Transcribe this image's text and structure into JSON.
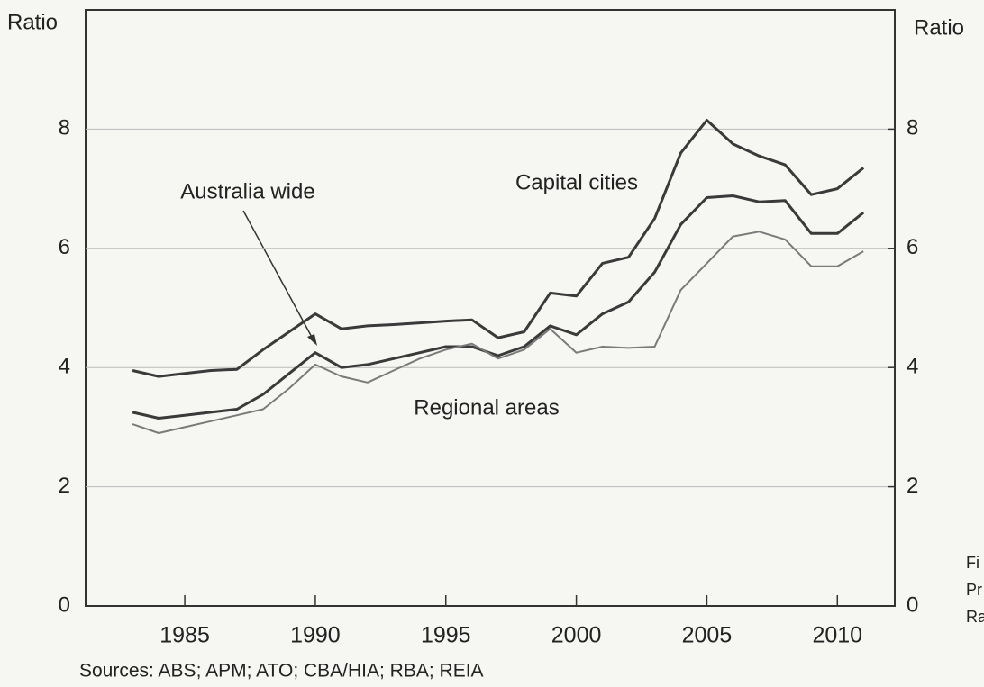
{
  "chart_data": {
    "type": "line",
    "y_label_left": "Ratio",
    "y_label_right": "Ratio",
    "source": "Sources: ABS; APM; ATO; CBA/HIA; RBA; REIA",
    "side_text": [
      "Fi",
      "Pr",
      "Ra"
    ],
    "x": [
      1983,
      1984,
      1985,
      1986,
      1987,
      1988,
      1989,
      1990,
      1991,
      1992,
      1993,
      1994,
      1995,
      1996,
      1997,
      1998,
      1999,
      2000,
      2001,
      2002,
      2003,
      2004,
      2005,
      2006,
      2007,
      2008,
      2009,
      2010,
      2011
    ],
    "series": [
      {
        "name": "Capital cities",
        "color": "#3a3a3a",
        "values": [
          3.95,
          3.85,
          3.9,
          3.95,
          3.97,
          4.3,
          4.6,
          4.9,
          4.65,
          4.7,
          4.72,
          4.75,
          4.78,
          4.8,
          4.5,
          4.6,
          5.25,
          5.2,
          5.75,
          5.85,
          6.5,
          7.6,
          8.15,
          7.75,
          7.55,
          7.4,
          6.9,
          7.0,
          7.35
        ]
      },
      {
        "name": "Australia wide",
        "color": "#3a3a3a",
        "values": [
          3.25,
          3.15,
          3.2,
          3.25,
          3.3,
          3.55,
          3.9,
          4.25,
          4.0,
          4.05,
          4.15,
          4.25,
          4.35,
          4.35,
          4.2,
          4.35,
          4.7,
          4.55,
          4.9,
          5.1,
          5.6,
          6.4,
          6.85,
          6.88,
          6.78,
          6.8,
          6.25,
          6.25,
          6.6
        ]
      },
      {
        "name": "Regional areas",
        "color": "#7a7a7a",
        "values": [
          3.05,
          2.9,
          3.0,
          3.1,
          3.2,
          3.3,
          3.65,
          4.05,
          3.85,
          3.75,
          3.95,
          4.15,
          4.3,
          4.4,
          4.15,
          4.3,
          4.65,
          4.25,
          4.35,
          4.33,
          4.35,
          5.3,
          5.75,
          6.2,
          6.28,
          6.15,
          5.7,
          5.7,
          5.95
        ]
      }
    ],
    "xlim": [
      1981.2,
      2012.2
    ],
    "xticks": [
      1985,
      1990,
      1995,
      2000,
      2005,
      2010
    ],
    "ylim": [
      0,
      10
    ],
    "yticks": [
      0,
      2,
      4,
      6,
      8
    ],
    "y2lim": [
      0,
      10
    ],
    "y2ticks": [
      0,
      2,
      4,
      6,
      8
    ],
    "grid": true
  }
}
